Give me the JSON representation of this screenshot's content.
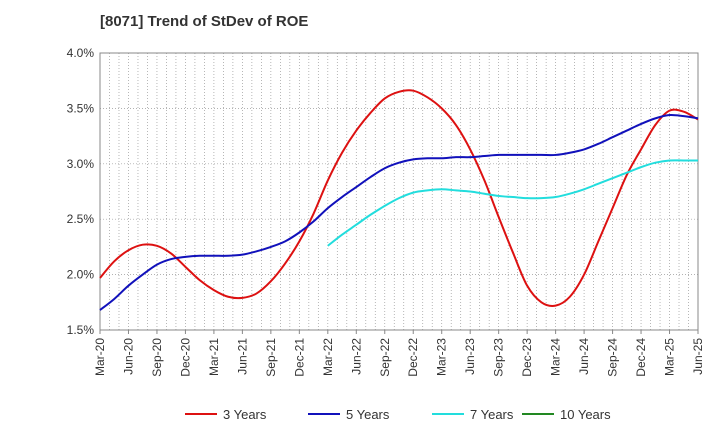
{
  "title": "[8071]  Trend of StDev of ROE",
  "chart_data": {
    "type": "line",
    "title": "[8071]  Trend of StDev of ROE",
    "xlabel": "",
    "ylabel": "",
    "x_ticks": [
      "Mar-20",
      "Jun-20",
      "Sep-20",
      "Dec-20",
      "Mar-21",
      "Jun-21",
      "Sep-21",
      "Dec-21",
      "Mar-22",
      "Jun-22",
      "Sep-22",
      "Dec-22",
      "Mar-23",
      "Jun-23",
      "Sep-23",
      "Dec-23",
      "Mar-24",
      "Jun-24",
      "Sep-24",
      "Dec-24",
      "Mar-25",
      "Jun-25"
    ],
    "y_ticks": [
      "1.5%",
      "2.0%",
      "2.5%",
      "3.0%",
      "3.5%",
      "4.0%"
    ],
    "ylim": [
      1.5,
      4.0
    ],
    "grid": true,
    "legend_position": "bottom",
    "series": [
      {
        "name": "3 Years",
        "color": "#dd1111",
        "points": [
          [
            0,
            1.97
          ],
          [
            1,
            2.12
          ],
          [
            2,
            2.22
          ],
          [
            3,
            2.27
          ],
          [
            4,
            2.26
          ],
          [
            5,
            2.19
          ],
          [
            6,
            2.07
          ],
          [
            7,
            1.95
          ],
          [
            8,
            1.86
          ],
          [
            9,
            1.8
          ],
          [
            10,
            1.79
          ],
          [
            11,
            1.83
          ],
          [
            12,
            1.94
          ],
          [
            13,
            2.1
          ],
          [
            14,
            2.3
          ],
          [
            15,
            2.55
          ],
          [
            16,
            2.85
          ],
          [
            17,
            3.1
          ],
          [
            18,
            3.3
          ],
          [
            19,
            3.46
          ],
          [
            20,
            3.59
          ],
          [
            21,
            3.65
          ],
          [
            22,
            3.66
          ],
          [
            23,
            3.6
          ],
          [
            24,
            3.5
          ],
          [
            25,
            3.35
          ],
          [
            26,
            3.13
          ],
          [
            27,
            2.85
          ],
          [
            28,
            2.52
          ],
          [
            29,
            2.2
          ],
          [
            30,
            1.9
          ],
          [
            31,
            1.75
          ],
          [
            32,
            1.72
          ],
          [
            33,
            1.8
          ],
          [
            34,
            2.0
          ],
          [
            35,
            2.3
          ],
          [
            36,
            2.6
          ],
          [
            37,
            2.9
          ],
          [
            38,
            3.13
          ],
          [
            39,
            3.35
          ],
          [
            40,
            3.48
          ],
          [
            41,
            3.47
          ],
          [
            42,
            3.4
          ]
        ]
      },
      {
        "name": "5 Years",
        "color": "#1111bb",
        "points": [
          [
            0,
            1.68
          ],
          [
            1,
            1.78
          ],
          [
            2,
            1.9
          ],
          [
            3,
            2.0
          ],
          [
            4,
            2.09
          ],
          [
            5,
            2.14
          ],
          [
            6,
            2.16
          ],
          [
            7,
            2.17
          ],
          [
            8,
            2.17
          ],
          [
            9,
            2.17
          ],
          [
            10,
            2.18
          ],
          [
            11,
            2.21
          ],
          [
            12,
            2.25
          ],
          [
            13,
            2.3
          ],
          [
            14,
            2.38
          ],
          [
            15,
            2.48
          ],
          [
            16,
            2.6
          ],
          [
            17,
            2.7
          ],
          [
            18,
            2.79
          ],
          [
            19,
            2.88
          ],
          [
            20,
            2.96
          ],
          [
            21,
            3.01
          ],
          [
            22,
            3.04
          ],
          [
            23,
            3.05
          ],
          [
            24,
            3.05
          ],
          [
            25,
            3.06
          ],
          [
            26,
            3.06
          ],
          [
            27,
            3.07
          ],
          [
            28,
            3.08
          ],
          [
            29,
            3.08
          ],
          [
            30,
            3.08
          ],
          [
            31,
            3.08
          ],
          [
            32,
            3.08
          ],
          [
            33,
            3.1
          ],
          [
            34,
            3.13
          ],
          [
            35,
            3.18
          ],
          [
            36,
            3.24
          ],
          [
            37,
            3.3
          ],
          [
            38,
            3.36
          ],
          [
            39,
            3.41
          ],
          [
            40,
            3.44
          ],
          [
            41,
            3.43
          ],
          [
            42,
            3.41
          ]
        ]
      },
      {
        "name": "7 Years",
        "color": "#22dddd",
        "points": [
          [
            16,
            2.26
          ],
          [
            17,
            2.36
          ],
          [
            18,
            2.45
          ],
          [
            19,
            2.54
          ],
          [
            20,
            2.62
          ],
          [
            21,
            2.69
          ],
          [
            22,
            2.74
          ],
          [
            23,
            2.76
          ],
          [
            24,
            2.77
          ],
          [
            25,
            2.76
          ],
          [
            26,
            2.75
          ],
          [
            27,
            2.73
          ],
          [
            28,
            2.71
          ],
          [
            29,
            2.7
          ],
          [
            30,
            2.69
          ],
          [
            31,
            2.69
          ],
          [
            32,
            2.7
          ],
          [
            33,
            2.73
          ],
          [
            34,
            2.77
          ],
          [
            35,
            2.82
          ],
          [
            36,
            2.87
          ],
          [
            37,
            2.92
          ],
          [
            38,
            2.97
          ],
          [
            39,
            3.01
          ],
          [
            40,
            3.03
          ],
          [
            41,
            3.03
          ],
          [
            42,
            3.03
          ]
        ]
      },
      {
        "name": "10 Years",
        "color": "#228822",
        "points": []
      }
    ]
  }
}
